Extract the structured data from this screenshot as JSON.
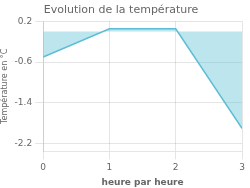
{
  "chart_data": {
    "type": "area",
    "title": "Evolution de la température",
    "xlabel": "heure par heure",
    "ylabel": "Température en °C",
    "x": [
      0,
      1,
      2,
      3
    ],
    "values": [
      -0.5,
      0.05,
      0.05,
      -1.9
    ],
    "color": "#5bbdd4",
    "xlim": [
      0,
      3
    ],
    "xticks": [
      0,
      1,
      2,
      3
    ],
    "ylim": [
      -2.35,
      0.2
    ],
    "yticks": [
      0.2,
      -0.6,
      -1.4,
      -2.2
    ],
    "grid": true
  }
}
